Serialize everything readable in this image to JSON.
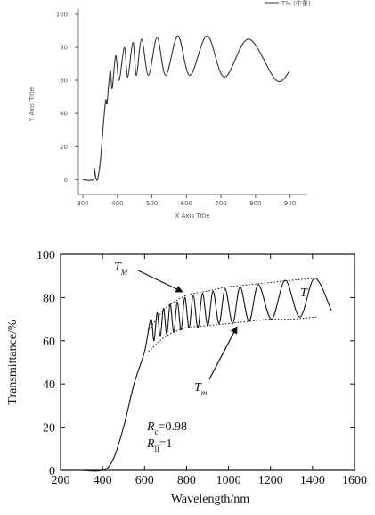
{
  "chart_data": [
    {
      "type": "line",
      "x_title": "X Axis Title",
      "y_title": "Y Axis Title",
      "xlim": [
        287,
        950
      ],
      "ylim": [
        -9,
        100
      ],
      "xticks": [
        300,
        400,
        500,
        600,
        700,
        800,
        900
      ],
      "yticks": [
        0,
        20,
        40,
        60,
        80,
        100
      ],
      "frame": "axes",
      "legend": "upper right",
      "series": [
        {
          "name": "T% (中重)",
          "color": "#333333",
          "style": "solid",
          "x": [
            300,
            330,
            333,
            337,
            342,
            350,
            360,
            366,
            370,
            375,
            380,
            385,
            395,
            405,
            420,
            430,
            445,
            455,
            470,
            490,
            515,
            540,
            575,
            610,
            660,
            710,
            780,
            860,
            900
          ],
          "values": [
            0,
            0,
            7,
            2,
            0,
            10,
            35,
            48,
            46,
            58,
            66,
            55,
            75,
            60,
            80,
            62,
            83,
            63,
            85,
            63,
            86,
            63,
            87,
            63,
            87,
            62,
            85,
            60,
            66
          ]
        }
      ]
    },
    {
      "type": "line",
      "x_title": "Wavelength/nm",
      "y_title": "Transmittance/%",
      "xlim": [
        200,
        1600
      ],
      "ylim": [
        0,
        100
      ],
      "xticks": [
        200,
        400,
        600,
        800,
        1000,
        1200,
        1400,
        1600
      ],
      "yticks": [
        0,
        20,
        40,
        60,
        80,
        100
      ],
      "frame": "box",
      "series": [
        {
          "color": "#111111",
          "style": "solid",
          "x": [
            300,
            400,
            450,
            500,
            550,
            600,
            630,
            645,
            660,
            675,
            690,
            706,
            722,
            739,
            756,
            774,
            792,
            812,
            832,
            854,
            876,
            901,
            926,
            955,
            984,
            1020,
            1055,
            1098,
            1142,
            1205,
            1270,
            1340,
            1410,
            1490
          ],
          "values": [
            0,
            0,
            5,
            20,
            40,
            55,
            70,
            60,
            73,
            62,
            75,
            63,
            77,
            64,
            78,
            65,
            80,
            66,
            81,
            66,
            82,
            67,
            83,
            68,
            84,
            68,
            85,
            69,
            86,
            70,
            88,
            71,
            89,
            74
          ]
        },
        {
          "color": "#111111",
          "style": "dotted",
          "x": [
            620,
            700,
            800,
            900,
            1000,
            1100,
            1200,
            1300,
            1420
          ],
          "values": [
            65,
            75,
            81,
            83,
            85,
            86,
            87,
            88,
            89
          ]
        },
        {
          "color": "#111111",
          "style": "dotted",
          "x": [
            620,
            700,
            800,
            900,
            1000,
            1100,
            1200,
            1300,
            1420
          ],
          "values": [
            55,
            62,
            66,
            67,
            68,
            69,
            70,
            70,
            71
          ]
        }
      ],
      "annotations": [
        {
          "text": "T",
          "sub": "M"
        },
        {
          "text": "T",
          "sub": "m"
        },
        {
          "text": "T"
        },
        {
          "text": "R",
          "sub": "c",
          "after": "=0.98"
        },
        {
          "text": "R",
          "sub": "ll",
          "after": "=1"
        }
      ]
    }
  ]
}
